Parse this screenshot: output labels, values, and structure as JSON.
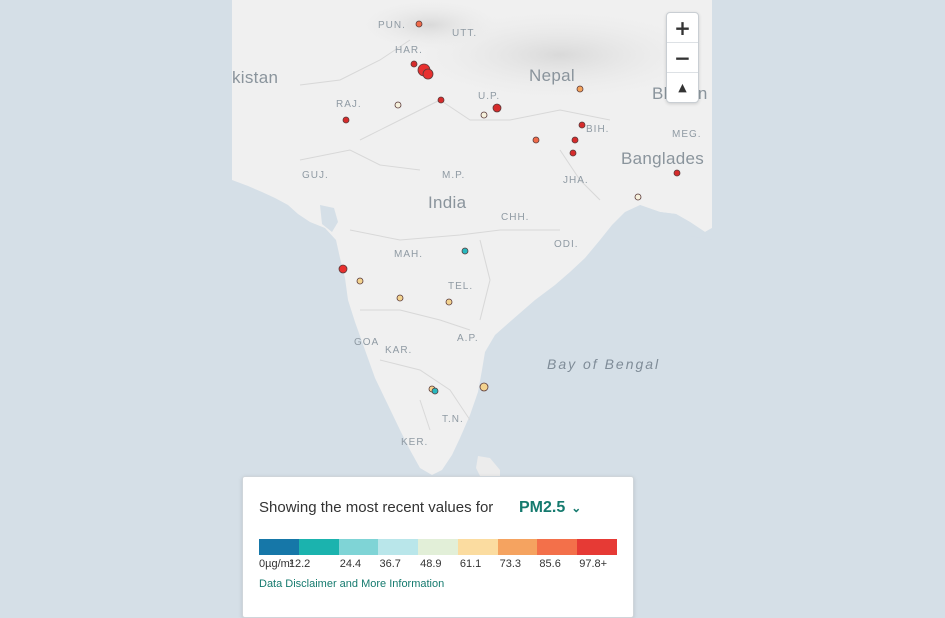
{
  "map": {
    "labels": {
      "pun": "PUN.",
      "utt": "UTT.",
      "har": "HAR.",
      "pakistan": "kistan",
      "nepal": "Nepal",
      "bhutan": "Bhutan",
      "raj": "RAJ.",
      "up": "U.P.",
      "bih": "BIH.",
      "meg": "MEG.",
      "bangladesh": "Banglades",
      "guj": "GUJ.",
      "mp": "M.P.",
      "jha": "JHA.",
      "india": "India",
      "chh": "CHH.",
      "odi": "ODI.",
      "mah": "MAH.",
      "tel": "TEL.",
      "goa": "GOA",
      "kar": "KAR.",
      "ap": "A.P.",
      "bay_of_bengal": "Bay of Bengal",
      "tn": "T.N.",
      "ker": "KER."
    },
    "station_colors": {
      "red": "#e8302f",
      "darkred": "#d62b2b",
      "orange": "#f4a35c",
      "tomato": "#f06b4a",
      "tan": "#f3d38f",
      "light": "#f6f1dc",
      "cyan": "#27b8be"
    },
    "zoom": {
      "in": "+",
      "out": "−",
      "compass": "▲"
    }
  },
  "legend": {
    "heading": "Showing the most recent values for",
    "parameter": "PM2.5",
    "chevron": "⌄",
    "colors": [
      "#1677a8",
      "#1bb3ae",
      "#7fd4d6",
      "#b9e6ea",
      "#e2efd8",
      "#fbdca0",
      "#f5a360",
      "#f3704a",
      "#e63a35"
    ],
    "scale": [
      "0µg/m³",
      "12.2",
      "24.4",
      "36.7",
      "48.9",
      "61.1",
      "73.3",
      "85.6",
      "97.8+"
    ],
    "disclaimer": "Data Disclaimer and More Information"
  }
}
